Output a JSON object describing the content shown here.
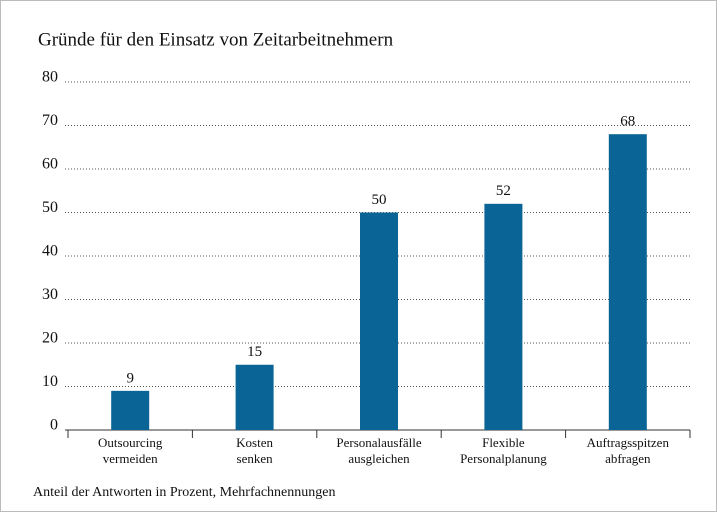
{
  "chart_data": {
    "type": "bar",
    "title": "Gründe für den Einsatz von Zeitarbeitnehmern",
    "note": "Anteil der Antworten in Prozent, Mehrfachnennungen",
    "categories": [
      [
        "Outsourcing",
        "vermeiden"
      ],
      [
        "Kosten",
        "senken"
      ],
      [
        "Personalausfälle",
        "ausgleichen"
      ],
      [
        "Flexible",
        "Personalplanung"
      ],
      [
        "Auftragsspitzen",
        "abfragen"
      ]
    ],
    "values": [
      9,
      15,
      50,
      52,
      68
    ],
    "color": "#0a6496",
    "ylim": [
      0,
      80
    ],
    "yticks": [
      0,
      10,
      20,
      30,
      40,
      50,
      60,
      70,
      80
    ],
    "grid": true
  }
}
